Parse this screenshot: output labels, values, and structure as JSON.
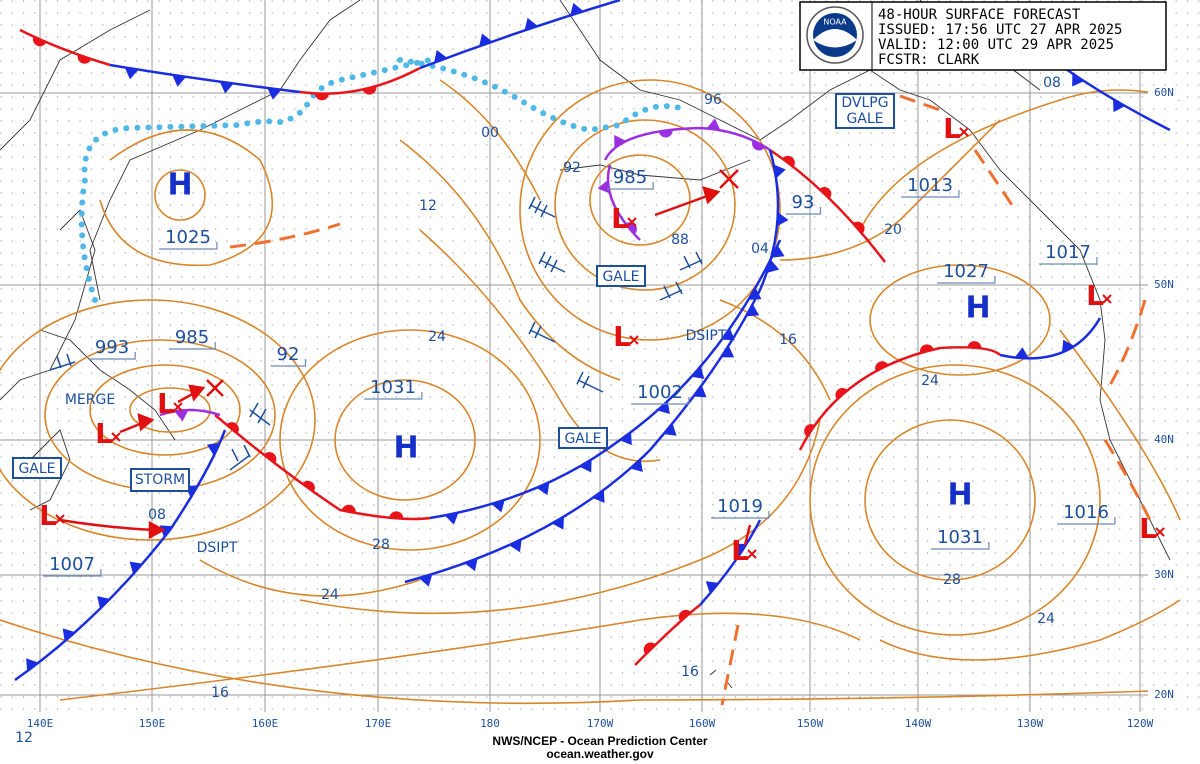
{
  "header": {
    "lines": [
      "48-HOUR SURFACE FORECAST",
      "ISSUED: 17:56 UTC 27 APR 2025",
      "VALID:  12:00 UTC 29 APR 2025",
      "FCSTR: CLARK"
    ],
    "logo": "NOAA"
  },
  "footer": {
    "agency": "NWS/NCEP - Ocean Prediction Center",
    "url": "ocean.weather.gov"
  },
  "longitudes": [
    "140E",
    "150E",
    "160E",
    "170E",
    "180",
    "170W",
    "160W",
    "150W",
    "140W",
    "130W",
    "120W"
  ],
  "latitudes": [
    "60N",
    "50N",
    "40N",
    "30N",
    "20N"
  ],
  "corner_label": "12",
  "centers": [
    {
      "letter": "H"
    },
    {
      "letter": "H"
    },
    {
      "letter": "H"
    },
    {
      "letter": "H"
    },
    {
      "letter": "L"
    },
    {
      "letter": "L"
    },
    {
      "letter": "L"
    },
    {
      "letter": "L"
    },
    {
      "letter": "L"
    },
    {
      "letter": "L"
    },
    {
      "letter": "L"
    },
    {
      "letter": "L"
    },
    {
      "letter": "L"
    }
  ],
  "pressure_labels": [
    "1025",
    "993",
    "985",
    "92",
    "1031",
    "1007",
    "985",
    "1002",
    "1019",
    "1013",
    "93",
    "1027",
    "1017",
    "1016",
    "1031"
  ],
  "isobar_labels": [
    "00",
    "12",
    "92",
    "88",
    "24",
    "16",
    "04",
    "20",
    "08",
    "96",
    "24",
    "28",
    "24",
    "24",
    "16",
    "28",
    "16",
    "08"
  ],
  "warnings": [
    "GALE",
    "STORM",
    "GALE",
    "GALE",
    "DVLPG",
    "GALE",
    "MERGE",
    "DSIPT",
    "DSIPT"
  ]
}
